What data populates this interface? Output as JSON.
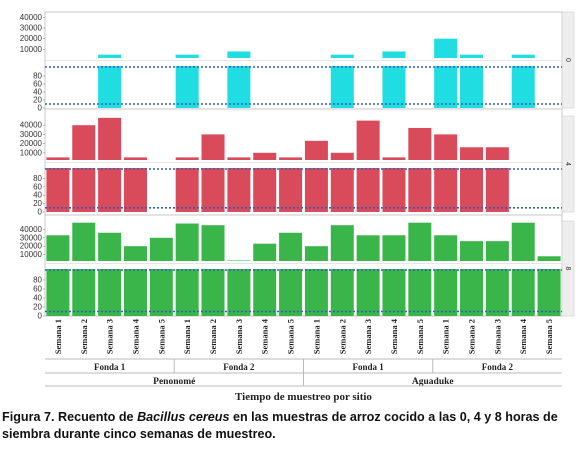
{
  "chart_data": {
    "type": "bar",
    "xlabel": "Tiempo de muestreo por sitio",
    "sites": [
      {
        "name": "Penonomé",
        "groups": [
          "Fonda 1",
          "Fonda 2"
        ]
      },
      {
        "name": "Aguaduke",
        "groups": [
          "Fonda 1",
          "Fonda 2"
        ]
      }
    ],
    "categories": [
      "Semana 1",
      "Semana 2",
      "Semana 3",
      "Semana 4",
      "Semana 5",
      "Semana 1",
      "Semana 2",
      "Semana 3",
      "Semana 4",
      "Semana 5",
      "Semana 1",
      "Semana 2",
      "Semana 3",
      "Semana 4",
      "Semana 5",
      "Semana 1",
      "Semana 2",
      "Semana 3",
      "Semana 4",
      "Semana 5"
    ],
    "y_ticks_upper": [
      "40000",
      "30000",
      "20000",
      "10000"
    ],
    "y_ticks_lower": [
      "80",
      "60",
      "40",
      "20",
      "0"
    ],
    "reference_lines": [
      100,
      10
    ],
    "series": [
      {
        "name": "0",
        "color": "#1fdde0",
        "ylim_upper": [
          0,
          45000
        ],
        "ylim_lower": [
          0,
          100
        ],
        "values": [
          null,
          null,
          5000,
          null,
          null,
          5000,
          null,
          8000,
          null,
          null,
          null,
          5000,
          null,
          8000,
          null,
          20000,
          5000,
          null,
          5000,
          null
        ]
      },
      {
        "name": "4",
        "color": "#d94a5a",
        "ylim_upper": [
          0,
          50000
        ],
        "ylim_lower": [
          0,
          100
        ],
        "values": [
          5000,
          40000,
          48000,
          5000,
          null,
          5000,
          30000,
          5000,
          10000,
          5000,
          23000,
          10000,
          45000,
          5000,
          37000,
          30000,
          16000,
          16000,
          null,
          null
        ]
      },
      {
        "name": "8",
        "color": "#3ab54a",
        "ylim_upper": [
          0,
          50000
        ],
        "ylim_lower": [
          0,
          100
        ],
        "values": [
          33000,
          48000,
          36000,
          20000,
          30000,
          47000,
          45000,
          3000,
          23000,
          36000,
          20000,
          45000,
          33000,
          33000,
          48000,
          33000,
          26000,
          26000,
          48000,
          8000
        ]
      }
    ]
  },
  "caption": {
    "prefix": "Figura 7.  Recuento de ",
    "species": "Bacillus cereus",
    "suffix": " en las muestras de arroz cocido a las 0, 4 y 8 horas de siembra durante cinco semanas de muestreo."
  }
}
